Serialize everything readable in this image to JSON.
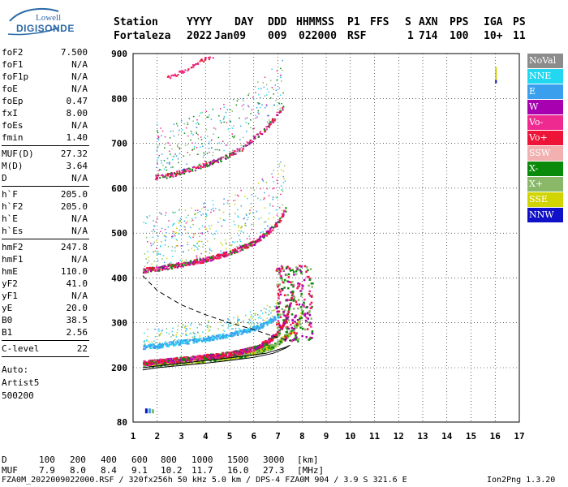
{
  "logo": {
    "line1": "Lowell",
    "line2": "DIGISONDE"
  },
  "header": {
    "labels": [
      "Station",
      "YYYY",
      "DAY",
      "DDD",
      "HHMMSS",
      "P1",
      "FFS",
      "S",
      "AXN",
      "PPS",
      "IGA",
      "PS"
    ],
    "values": [
      "Fortaleza",
      "2022",
      "Jan09",
      "009",
      "022000",
      "RSF",
      "",
      "1",
      "714",
      "100",
      "10+",
      "11"
    ]
  },
  "params": {
    "group1": [
      {
        "k": "foF2",
        "v": "7.500"
      },
      {
        "k": "foF1",
        "v": "N/A"
      },
      {
        "k": "foF1p",
        "v": "N/A"
      },
      {
        "k": "foE",
        "v": "N/A"
      },
      {
        "k": "foEp",
        "v": "0.47"
      },
      {
        "k": "fxI",
        "v": "8.00"
      },
      {
        "k": "foEs",
        "v": "N/A"
      },
      {
        "k": "fmin",
        "v": "1.40"
      }
    ],
    "group2": [
      {
        "k": "MUF(D)",
        "v": "27.32"
      },
      {
        "k": "M(D)",
        "v": "3.64"
      },
      {
        "k": "D",
        "v": "N/A"
      }
    ],
    "group3": [
      {
        "k": "h`F",
        "v": "205.0"
      },
      {
        "k": "h`F2",
        "v": "205.0"
      },
      {
        "k": "h`E",
        "v": "N/A"
      },
      {
        "k": "h`Es",
        "v": "N/A"
      }
    ],
    "group4": [
      {
        "k": "hmF2",
        "v": "247.8"
      },
      {
        "k": "hmF1",
        "v": "N/A"
      },
      {
        "k": "hmE",
        "v": "110.0"
      },
      {
        "k": "yF2",
        "v": "41.0"
      },
      {
        "k": "yF1",
        "v": "N/A"
      },
      {
        "k": "yE",
        "v": "20.0"
      },
      {
        "k": "B0",
        "v": "38.5"
      },
      {
        "k": "B1",
        "v": "2.56"
      }
    ],
    "group5": [
      {
        "k": "C-level",
        "v": "22"
      }
    ],
    "auto": [
      "Auto:",
      "Artist5",
      "500200"
    ]
  },
  "legend": [
    {
      "label": "NoVal",
      "color": "#8c8c8c"
    },
    {
      "label": "NNE",
      "color": "#22d8f0"
    },
    {
      "label": "E",
      "color": "#3aa0ee"
    },
    {
      "label": "W",
      "color": "#a800b0"
    },
    {
      "label": "Vo-",
      "color": "#ee2a90"
    },
    {
      "label": "Vo+",
      "color": "#ee1438"
    },
    {
      "label": "SSW",
      "color": "#f2b0b0"
    },
    {
      "label": "X-",
      "color": "#0a8a0a"
    },
    {
      "label": "X+",
      "color": "#88b868"
    },
    {
      "label": "SSE",
      "color": "#d2d400"
    },
    {
      "label": "NNW",
      "color": "#1010c8"
    }
  ],
  "footer": {
    "d_label": "D",
    "d_values": [
      "100",
      "200",
      "400",
      "600",
      "800",
      "1000",
      "1500",
      "3000",
      "[km]"
    ],
    "muf_label": "MUF",
    "muf_values": [
      "7.9",
      "8.0",
      "8.4",
      "9.1",
      "10.2",
      "11.7",
      "16.0",
      "27.3",
      "[MHz]"
    ],
    "info": "FZA0M_2022009022000.RSF / 320fx256h 50 kHz 5.0 km / DPS-4 FZA0M 904 / 3.9 S 321.6 E",
    "version": "Ion2Png 1.3.20"
  },
  "chart_data": {
    "type": "scatter",
    "x_ticks": [
      1,
      2,
      3,
      4,
      5,
      6,
      7,
      8,
      9,
      10,
      11,
      12,
      13,
      14,
      15,
      16,
      17
    ],
    "y_ticks": [
      80,
      200,
      300,
      400,
      500,
      600,
      700,
      800,
      900
    ],
    "xlim": [
      1,
      17
    ],
    "ylim": [
      80,
      900
    ],
    "grid": true,
    "legend_placement": "right",
    "traces": [
      {
        "name": "F2 O-trace",
        "color": "#ee1438",
        "x": [
          1.4,
          2.0,
          3.0,
          4.0,
          5.0,
          5.5,
          6.0,
          6.5,
          7.0,
          7.3,
          7.5,
          7.6
        ],
        "y": [
          212,
          215,
          220,
          226,
          232,
          238,
          245,
          258,
          280,
          310,
          345,
          380
        ]
      },
      {
        "name": "F2 X-trace",
        "color": "#0a8a0a",
        "x": [
          1.4,
          2.0,
          3.0,
          4.0,
          5.0,
          6.0,
          6.8,
          7.4,
          7.8,
          8.0
        ],
        "y": [
          208,
          210,
          214,
          219,
          225,
          235,
          250,
          275,
          300,
          330
        ]
      },
      {
        "name": "F2 2nd-hop",
        "color": "#ee1438",
        "x": [
          1.4,
          2.0,
          3.0,
          4.0,
          5.0,
          6.0,
          6.5,
          7.0,
          7.3
        ],
        "y": [
          418,
          422,
          432,
          442,
          458,
          480,
          500,
          525,
          555
        ]
      },
      {
        "name": "F2 3rd-hop",
        "color": "#ee1438",
        "x": [
          1.9,
          2.5,
          3.5,
          4.5,
          5.5,
          6.5,
          7.2
        ],
        "y": [
          625,
          630,
          645,
          663,
          690,
          735,
          780
        ]
      },
      {
        "name": "F2 4th-hop",
        "color": "#ee1438",
        "x": [
          2.4,
          3.0,
          3.8,
          4.5
        ],
        "y": [
          848,
          860,
          885,
          900
        ]
      },
      {
        "name": "Es/E blue band",
        "color": "#3aa0ee",
        "x": [
          1.4,
          2.0,
          3.0,
          4.0,
          5.0,
          6.0,
          6.5,
          7.0
        ],
        "y": [
          248,
          250,
          258,
          265,
          275,
          288,
          300,
          316
        ]
      }
    ],
    "profile_dashed": {
      "x": [
        1.4,
        2.0,
        3.0,
        4.0,
        5.0,
        6.0,
        6.8,
        7.5
      ],
      "y": [
        405,
        372,
        340,
        318,
        300,
        285,
        270,
        260
      ]
    },
    "profile_solid": {
      "x": [
        1.4,
        2.0,
        3.0,
        4.0,
        5.0,
        6.0,
        6.8,
        7.3,
        7.5,
        7.3,
        6.5,
        5.0,
        3.0,
        1.4
      ],
      "y": [
        195,
        200,
        205,
        210,
        216,
        223,
        232,
        243,
        250,
        245,
        232,
        222,
        210,
        200
      ]
    },
    "noval_marks": [
      {
        "x": 16.0,
        "y": 870
      }
    ],
    "low_marks": [
      {
        "x": 1.5,
        "y": 110
      }
    ]
  }
}
